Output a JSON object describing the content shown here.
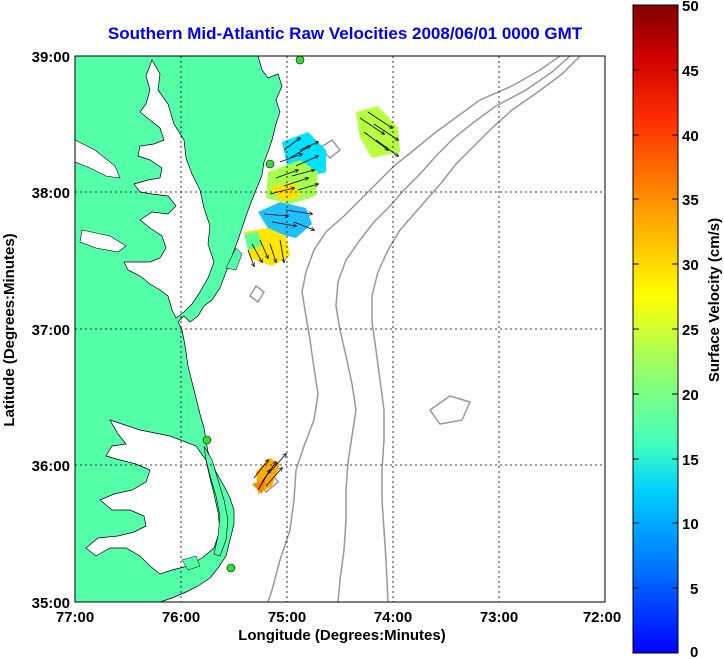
{
  "title": "Southern Mid-Atlantic Raw Velocities 2008/06/01 0000 GMT",
  "x_axis": {
    "label": "Longitude (Degrees:Minutes)",
    "ticks": [
      "77:00",
      "76:00",
      "75:00",
      "74:00",
      "73:00",
      "72:00"
    ]
  },
  "y_axis": {
    "label": "Latitude (Degrees:Minutes)",
    "ticks": [
      "39:00",
      "38:00",
      "37:00",
      "36:00",
      "35:00"
    ]
  },
  "colorbar": {
    "label": "Surface Velocity (cm/s)",
    "ticks": [
      "50",
      "45",
      "40",
      "35",
      "30",
      "25",
      "20",
      "15",
      "10",
      "5",
      "0"
    ]
  },
  "colors": {
    "title": "#0000ee",
    "land": "#55ffaa",
    "station": "#33dd33",
    "bathymetry": "#999999",
    "grid": "#000000"
  },
  "map_extent": {
    "lon_west": -77,
    "lon_east": -72,
    "lat_south": 35,
    "lat_north": 39
  },
  "stations": [
    {
      "lon": -75.15,
      "lat": 38.96
    },
    {
      "lon": -75.13,
      "lat": 38.22
    },
    {
      "lon": -75.7,
      "lat": 36.2
    },
    {
      "lon": -75.53,
      "lat": 35.25
    }
  ]
}
